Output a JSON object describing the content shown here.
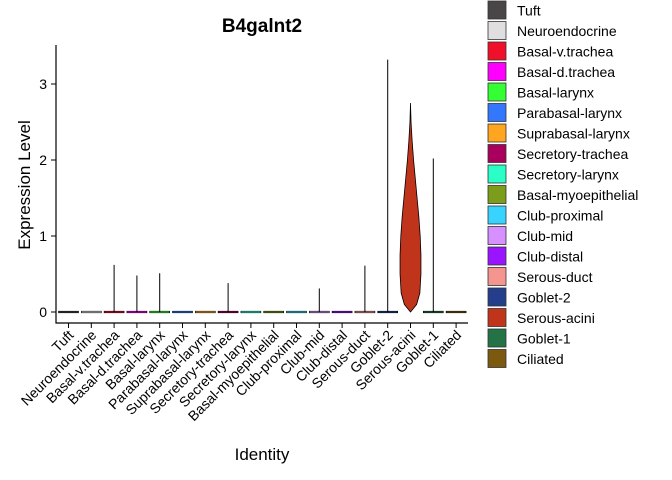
{
  "chart_data": {
    "type": "violin",
    "title": "B4galnt2",
    "xlabel": "Identity",
    "ylabel": "Expression Level",
    "ylim": [
      -0.15,
      3.5
    ],
    "yticks": [
      0,
      1,
      2,
      3
    ],
    "grid": false,
    "legend_position": "right",
    "categories": [
      {
        "name": "Tuft",
        "color": "#4a4546",
        "max": 0
      },
      {
        "name": "Neuroendocrine",
        "color": "#e0dede",
        "max": 0
      },
      {
        "name": "Basal-v.trachea",
        "color": "#f0102a",
        "max": 0.62
      },
      {
        "name": "Basal-d.trachea",
        "color": "#ff00ff",
        "max": 0.48
      },
      {
        "name": "Basal-larynx",
        "color": "#33ff33",
        "max": 0.51
      },
      {
        "name": "Parabasal-larynx",
        "color": "#3377ff",
        "max": 0
      },
      {
        "name": "Suprabasal-larynx",
        "color": "#ffa51f",
        "max": 0
      },
      {
        "name": "Secretory-trachea",
        "color": "#a8005c",
        "max": 0.38
      },
      {
        "name": "Secretory-larynx",
        "color": "#2bffc8",
        "max": 0
      },
      {
        "name": "Basal-myoepithelial",
        "color": "#7c9d1b",
        "max": 0
      },
      {
        "name": "Club-proximal",
        "color": "#38d4ff",
        "max": 0
      },
      {
        "name": "Club-mid",
        "color": "#d690ff",
        "max": 0.31
      },
      {
        "name": "Club-distal",
        "color": "#9a14ff",
        "max": 0
      },
      {
        "name": "Serous-duct",
        "color": "#f4968f",
        "max": 0.61
      },
      {
        "name": "Goblet-2",
        "color": "#253e8c",
        "max": 3.32
      },
      {
        "name": "Serous-acini",
        "color": "#c0341c",
        "max": 2.75
      },
      {
        "name": "Goblet-1",
        "color": "#237346",
        "max": 2.02
      },
      {
        "name": "Ciliated",
        "color": "#7b5a10",
        "max": 0
      }
    ],
    "serous_acini_density": [
      [
        0.0,
        0.0
      ],
      [
        0.1,
        0.56
      ],
      [
        0.25,
        0.85
      ],
      [
        0.5,
        0.95
      ],
      [
        0.75,
        0.95
      ],
      [
        1.0,
        0.88
      ],
      [
        1.25,
        0.76
      ],
      [
        1.5,
        0.6
      ],
      [
        1.75,
        0.44
      ],
      [
        2.0,
        0.28
      ],
      [
        2.25,
        0.15
      ],
      [
        2.5,
        0.05
      ],
      [
        2.75,
        0.0
      ]
    ]
  }
}
